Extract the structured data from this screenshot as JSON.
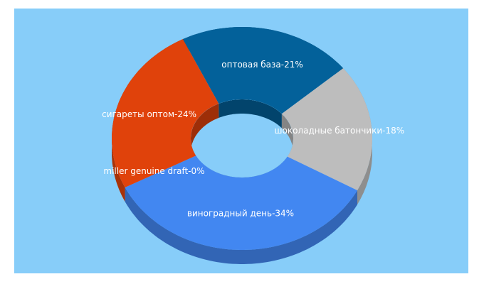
{
  "chart_data": {
    "type": "donut",
    "values": [
      21,
      18,
      34,
      0,
      24
    ],
    "value_labels": [
      "оптовая база-21%",
      "шоколадные батончики-18%",
      "виноградный день-34%",
      "miller genuine draft-0%",
      "сигареты оптом-24%"
    ],
    "colors": [
      "#03619a",
      "#bdbdbd",
      "#4287f1",
      "#7a3b8f",
      "#e0420b"
    ]
  }
}
